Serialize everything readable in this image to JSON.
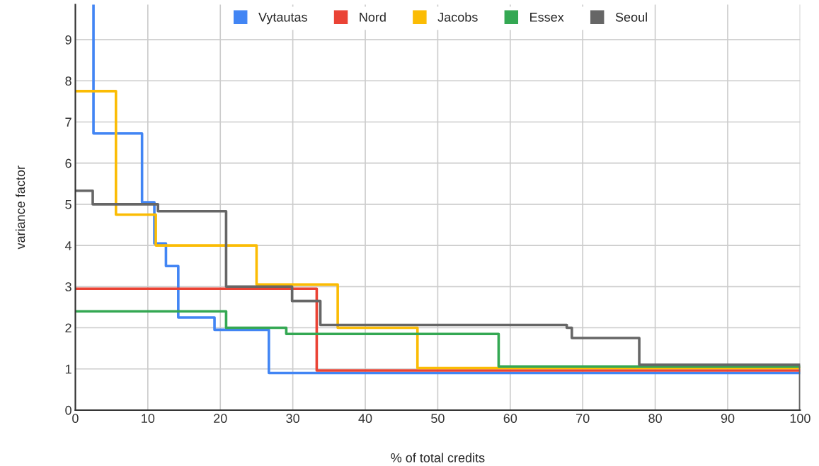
{
  "chart_data": {
    "type": "step",
    "xlabel": "% of total credits",
    "ylabel": "variance factor",
    "xlim": [
      0,
      100
    ],
    "xticks": [
      0,
      10,
      20,
      30,
      40,
      50,
      60,
      70,
      80,
      90,
      100
    ],
    "ylim": [
      0,
      9.85
    ],
    "yticks": [
      0,
      1,
      2,
      3,
      4,
      5,
      6,
      7,
      8,
      9
    ],
    "grid": true,
    "legend": "top",
    "line_style": "solid",
    "series": [
      {
        "name": "Vytautas",
        "color": "#4285f4",
        "x": [
          2.5,
          2.5,
          9.2,
          10.9,
          12.5,
          14.2,
          19.2,
          26.7,
          100
        ],
        "values": [
          9.85,
          6.72,
          5.05,
          4.05,
          3.5,
          2.25,
          1.95,
          0.9,
          0.9
        ]
      },
      {
        "name": "Nord",
        "color": "#ea4335",
        "x": [
          0,
          33.3,
          100
        ],
        "values": [
          2.95,
          0.96,
          0.96
        ]
      },
      {
        "name": "Jacobs",
        "color": "#fbbc04",
        "x": [
          0,
          5.6,
          11.1,
          25.0,
          36.2,
          47.2,
          100
        ],
        "values": [
          7.75,
          4.75,
          4.0,
          3.05,
          2.0,
          1.02,
          1.02
        ]
      },
      {
        "name": "Essex",
        "color": "#34a853",
        "x": [
          0,
          20.8,
          29.1,
          58.4,
          100
        ],
        "values": [
          2.4,
          2.0,
          1.85,
          1.06,
          1.06
        ]
      },
      {
        "name": "Seoul",
        "color": "#666666",
        "x": [
          0,
          2.4,
          11.4,
          20.8,
          29.9,
          33.8,
          67.8,
          68.5,
          77.8,
          100
        ],
        "values": [
          5.33,
          5.0,
          4.83,
          3.0,
          2.65,
          2.07,
          2.0,
          1.75,
          1.1,
          0
        ]
      }
    ]
  }
}
